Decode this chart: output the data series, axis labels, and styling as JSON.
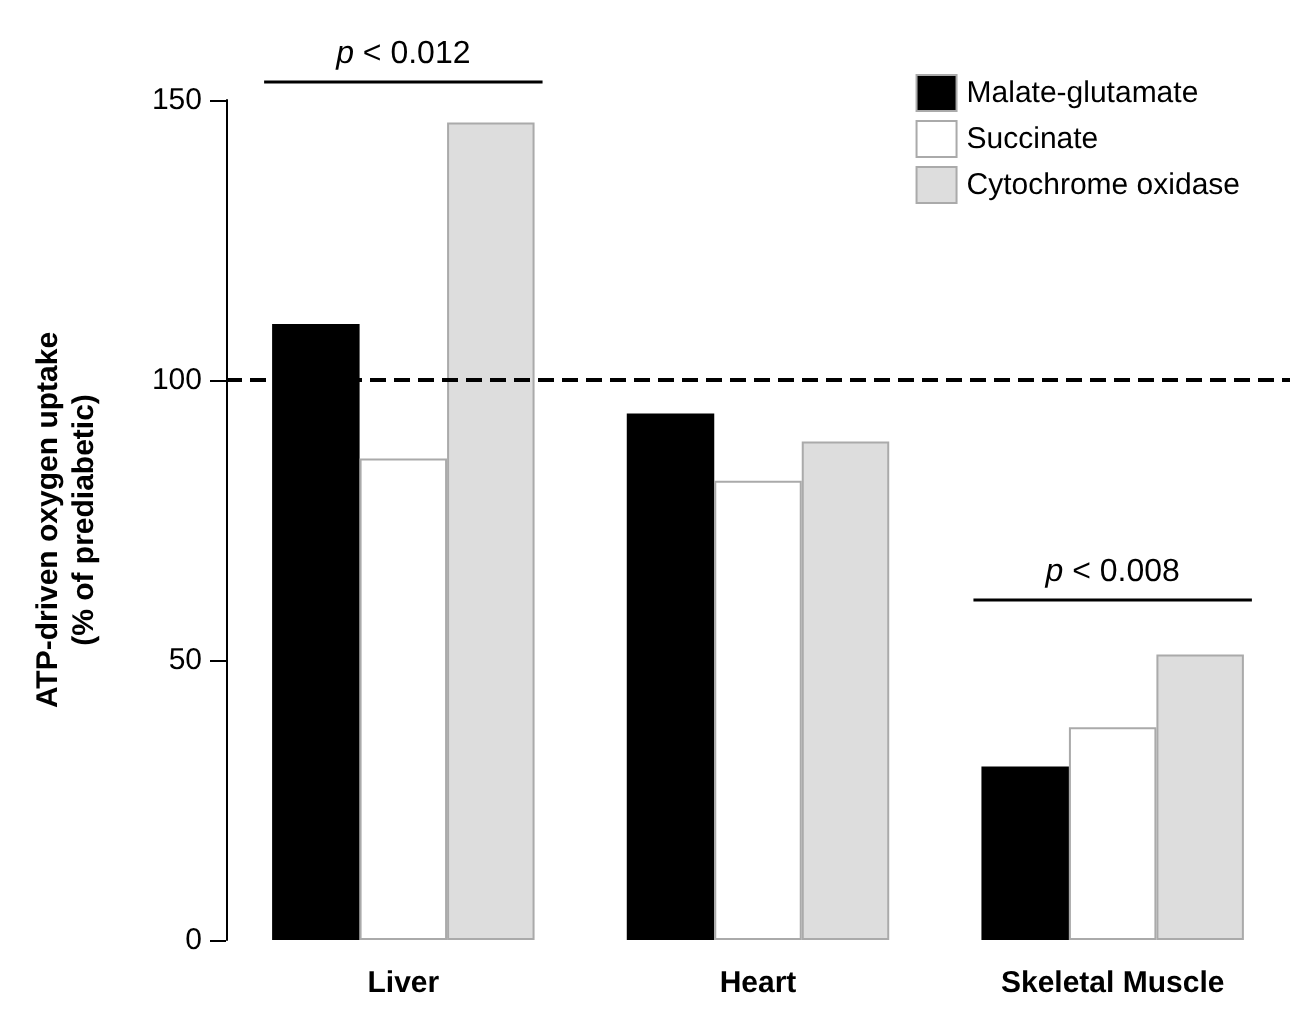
{
  "chart_data": {
    "type": "bar",
    "ylabel": "ATP-driven oxygen uptake\n(% of prediabetic)",
    "categories": [
      "Liver",
      "Heart",
      "Skeletal Muscle"
    ],
    "series": [
      {
        "name": "Malate-glutamate",
        "color": "#000000",
        "values": [
          110,
          94,
          31
        ]
      },
      {
        "name": "Succinate",
        "color": "#ffffff",
        "values": [
          86,
          82,
          38
        ]
      },
      {
        "name": "Cytochrome oxidase",
        "color": "#dddddd",
        "values": [
          146,
          89,
          51
        ]
      }
    ],
    "ylim": [
      0,
      150
    ],
    "yticks": [
      0,
      50,
      100,
      150
    ],
    "grid": false,
    "legend": "top right",
    "ref_lines": [
      {
        "axis": "y",
        "value": 100,
        "line_style": "dashed",
        "color": "#000000"
      }
    ],
    "annotations": [
      "p < 0.012",
      "p < 0.008"
    ]
  }
}
